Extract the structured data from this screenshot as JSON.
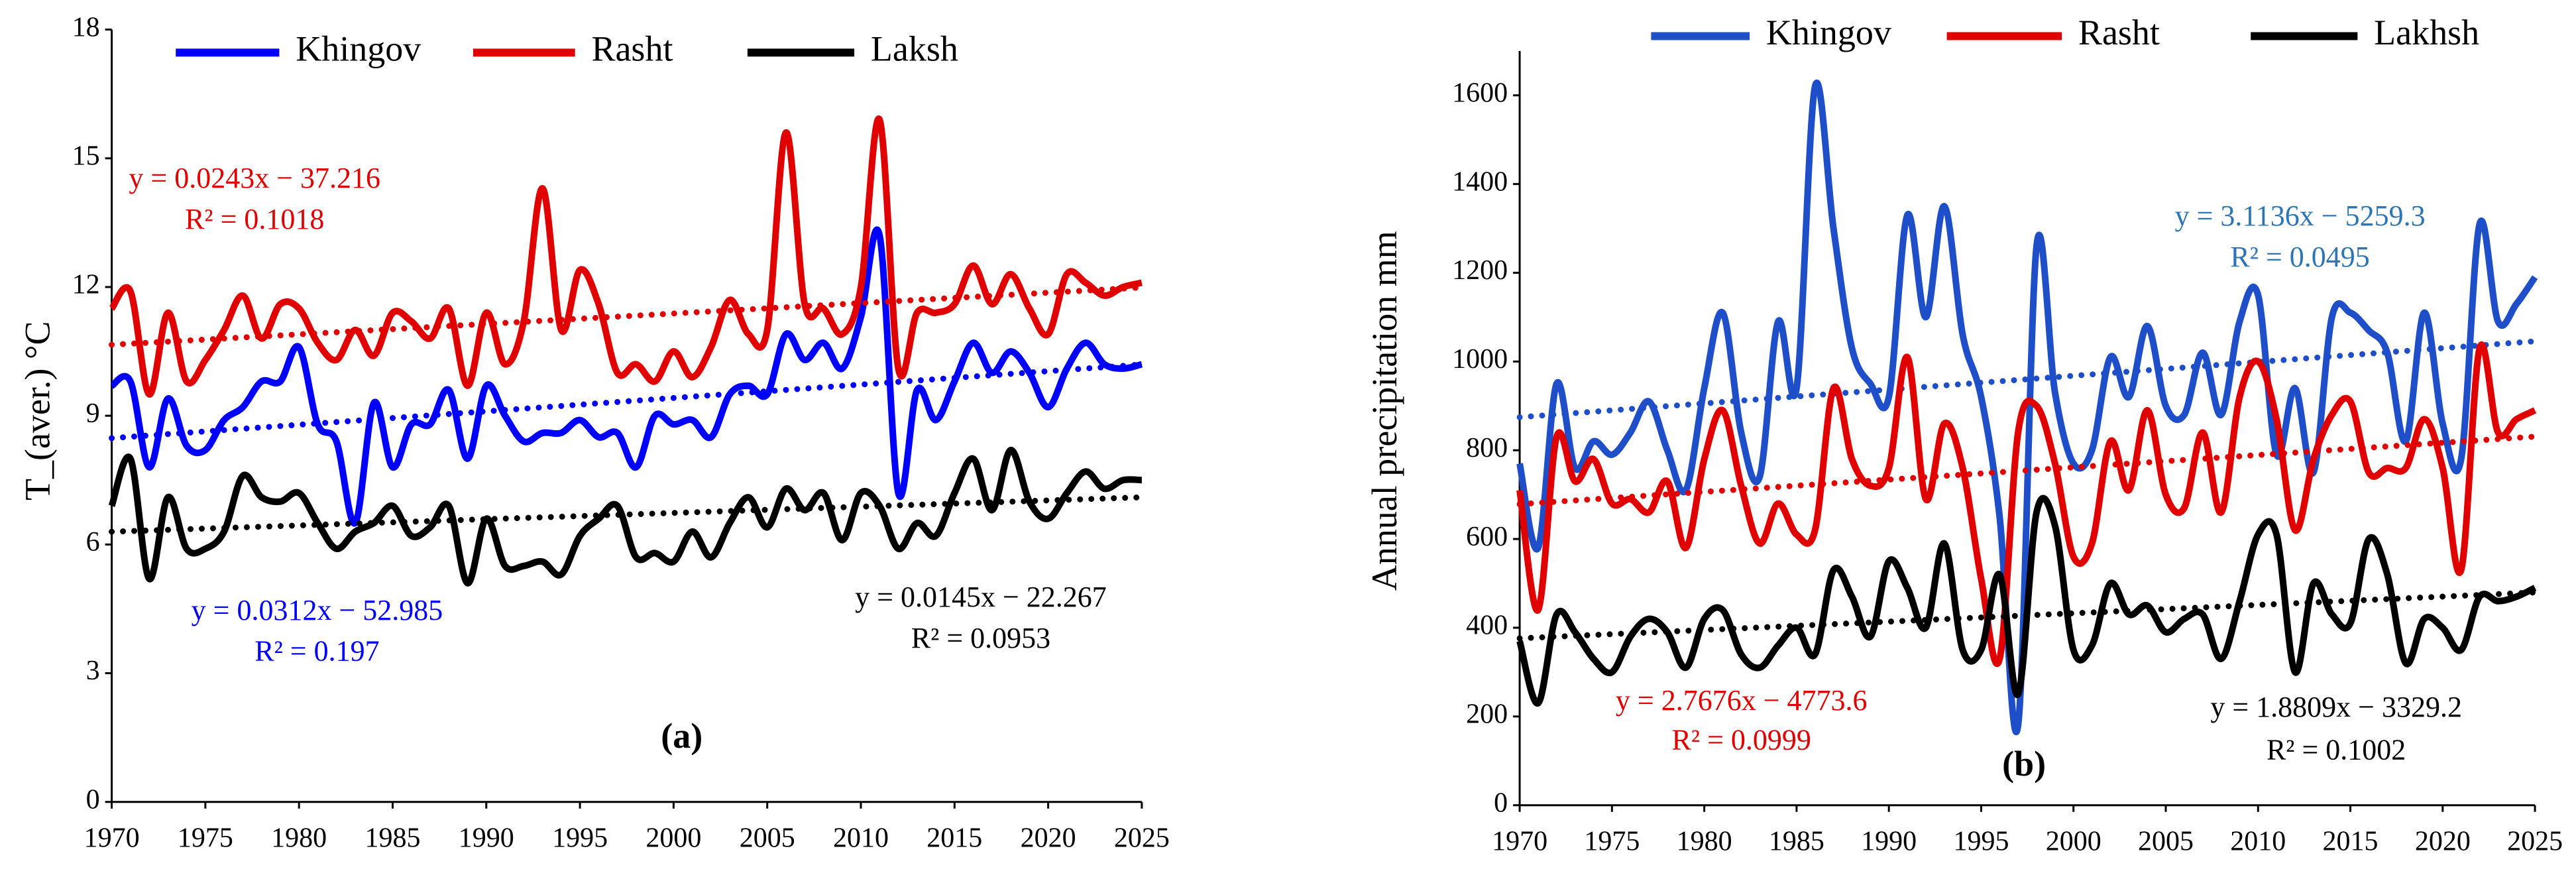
{
  "chart_data": [
    {
      "type": "line",
      "title": "(a)",
      "y_label": "T_(aver.) °C",
      "x": [
        1970,
        1971,
        1972,
        1973,
        1974,
        1975,
        1976,
        1977,
        1978,
        1979,
        1980,
        1981,
        1982,
        1983,
        1984,
        1985,
        1986,
        1987,
        1988,
        1989,
        1990,
        1991,
        1992,
        1993,
        1994,
        1995,
        1996,
        1997,
        1998,
        1999,
        2000,
        2001,
        2002,
        2003,
        2004,
        2005,
        2006,
        2007,
        2008,
        2009,
        2010,
        2011,
        2012,
        2013,
        2014,
        2015,
        2016,
        2017,
        2018,
        2019,
        2020,
        2021,
        2022,
        2023,
        2024,
        2025
      ],
      "xlim": [
        1970,
        2025
      ],
      "xticks": [
        1970,
        1975,
        1980,
        1985,
        1990,
        1995,
        2000,
        2005,
        2010,
        2015,
        2020,
        2025
      ],
      "ylim": [
        0,
        18
      ],
      "yticks": [
        0,
        3,
        6,
        9,
        12,
        15,
        18
      ],
      "grid": false,
      "legend": "top",
      "series": [
        {
          "name": "Khingov",
          "color": "#0000ff",
          "values": [
            9.7,
            9.8,
            7.8,
            9.4,
            8.3,
            8.2,
            8.9,
            9.2,
            9.8,
            9.8,
            10.6,
            8.8,
            8.4,
            6.5,
            9.3,
            7.8,
            8.8,
            8.8,
            9.6,
            8.0,
            9.7,
            9.0,
            8.4,
            8.6,
            8.6,
            8.9,
            8.5,
            8.6,
            7.8,
            9.0,
            8.8,
            8.9,
            8.5,
            9.5,
            9.7,
            9.5,
            10.9,
            10.3,
            10.7,
            10.1,
            11.3,
            13.2,
            7.2,
            9.6,
            8.9,
            9.8,
            10.7,
            10.0,
            10.5,
            10.0,
            9.2,
            10.1,
            10.7,
            10.2,
            10.1,
            10.2
          ],
          "trend": {
            "x": [
              1970,
              2025
            ],
            "values": [
              8.479,
              10.195
            ]
          }
        },
        {
          "name": "Rasht",
          "color": "#e00000",
          "values": [
            11.5,
            11.9,
            9.5,
            11.4,
            9.8,
            10.3,
            11.0,
            11.8,
            10.8,
            11.6,
            11.5,
            10.7,
            10.3,
            11.0,
            10.4,
            11.4,
            11.2,
            10.8,
            11.5,
            9.7,
            11.4,
            10.2,
            11.2,
            14.3,
            11.0,
            12.4,
            11.6,
            10.0,
            10.2,
            9.8,
            10.5,
            9.9,
            10.6,
            11.7,
            10.9,
            11.0,
            15.6,
            11.6,
            11.5,
            10.9,
            12.0,
            15.9,
            10.1,
            11.4,
            11.4,
            11.6,
            12.5,
            11.6,
            12.3,
            11.5,
            10.9,
            12.3,
            12.1,
            11.8,
            12.0,
            12.1
          ],
          "trend": {
            "x": [
              1970,
              2025
            ],
            "values": [
              10.655,
              11.99
            ]
          }
        },
        {
          "name": "Laksh",
          "color": "#000000",
          "values": [
            6.9,
            8.0,
            5.2,
            7.1,
            5.9,
            5.9,
            6.3,
            7.6,
            7.1,
            7.0,
            7.2,
            6.5,
            5.9,
            6.3,
            6.5,
            6.9,
            6.2,
            6.4,
            6.9,
            5.1,
            6.6,
            5.5,
            5.5,
            5.6,
            5.3,
            6.2,
            6.6,
            6.9,
            5.7,
            5.8,
            5.6,
            6.3,
            5.7,
            6.5,
            7.1,
            6.4,
            7.3,
            6.8,
            7.2,
            6.1,
            7.2,
            6.9,
            5.9,
            6.5,
            6.2,
            7.2,
            8.0,
            6.8,
            8.2,
            7.0,
            6.6,
            7.2,
            7.7,
            7.3,
            7.5,
            7.5
          ],
          "trend": {
            "x": [
              1970,
              2025
            ],
            "values": [
              6.298,
              7.1
            ]
          }
        }
      ],
      "annotations": [
        {
          "text": "y = 0.0243x − 37.216",
          "color": "#e00000"
        },
        {
          "text": "R² = 0.1018",
          "color": "#e00000"
        },
        {
          "text": "y = 0.0312x − 52.985",
          "color": "#0000ff"
        },
        {
          "text": "R² = 0.197",
          "color": "#0000ff"
        },
        {
          "text": "y = 0.0145x − 22.267",
          "color": "#000000"
        },
        {
          "text": "R² = 0.0953",
          "color": "#000000"
        }
      ]
    },
    {
      "type": "line",
      "title": "(b)",
      "y_label": "Annual precipitation  mm",
      "x": [
        1970,
        1971,
        1972,
        1973,
        1974,
        1975,
        1976,
        1977,
        1978,
        1979,
        1980,
        1981,
        1982,
        1983,
        1984,
        1985,
        1986,
        1987,
        1988,
        1989,
        1990,
        1991,
        1992,
        1993,
        1994,
        1995,
        1996,
        1997,
        1998,
        1999,
        2000,
        2001,
        2002,
        2003,
        2004,
        2005,
        2006,
        2007,
        2008,
        2009,
        2010,
        2011,
        2012,
        2013,
        2014,
        2015,
        2016,
        2017,
        2018,
        2019,
        2020,
        2021,
        2022,
        2023,
        2024,
        2025
      ],
      "xlim": [
        1970,
        2025
      ],
      "xticks": [
        1970,
        1975,
        1980,
        1985,
        1990,
        1995,
        2000,
        2005,
        2010,
        2015,
        2020,
        2025
      ],
      "ylim": [
        0,
        1700
      ],
      "yticks": [
        0,
        200,
        400,
        600,
        800,
        1000,
        1200,
        1400,
        1600
      ],
      "grid": false,
      "legend": "top",
      "series": [
        {
          "name": "Khingov",
          "color": "#1f4fc8",
          "values": [
            770,
            580,
            950,
            760,
            820,
            790,
            840,
            910,
            800,
            710,
            940,
            1110,
            840,
            740,
            1090,
            940,
            1620,
            1300,
            1030,
            950,
            920,
            1330,
            1100,
            1350,
            1060,
            920,
            650,
            180,
            1260,
            930,
            770,
            800,
            1010,
            920,
            1080,
            900,
            880,
            1020,
            880,
            1090,
            1150,
            790,
            940,
            750,
            1100,
            1110,
            1070,
            1020,
            820,
            1110,
            860,
            780,
            1310,
            1090,
            1130,
            1190
          ],
          "trend": {
            "x": [
              1970,
              2025
            ],
            "values": [
              874.5,
              1045.7
            ]
          }
        },
        {
          "name": "Rasht",
          "color": "#e00000",
          "values": [
            710,
            440,
            830,
            730,
            780,
            680,
            690,
            660,
            730,
            580,
            780,
            890,
            720,
            590,
            680,
            610,
            620,
            940,
            780,
            720,
            760,
            1010,
            690,
            860,
            760,
            510,
            330,
            840,
            900,
            770,
            560,
            590,
            820,
            710,
            890,
            700,
            670,
            840,
            660,
            920,
            1000,
            870,
            620,
            780,
            880,
            910,
            750,
            760,
            760,
            870,
            760,
            530,
            1030,
            840,
            870,
            890
          ],
          "trend": {
            "x": [
              1970,
              2025
            ],
            "values": [
              678.6,
              830.8
            ]
          }
        },
        {
          "name": "Lakhsh",
          "color": "#000000",
          "values": [
            370,
            230,
            430,
            390,
            330,
            300,
            380,
            420,
            390,
            310,
            420,
            440,
            340,
            310,
            360,
            400,
            340,
            530,
            470,
            380,
            550,
            490,
            400,
            590,
            350,
            350,
            520,
            250,
            660,
            630,
            350,
            360,
            500,
            430,
            450,
            390,
            420,
            430,
            330,
            460,
            610,
            610,
            300,
            500,
            430,
            410,
            600,
            520,
            320,
            420,
            400,
            350,
            470,
            460,
            470,
            490
          ],
          "trend": {
            "x": [
              1970,
              2025
            ],
            "values": [
              376.2,
              479.6
            ]
          }
        }
      ],
      "annotations": [
        {
          "text": "y = 3.1136x − 5259.3",
          "color": "#2e75b6"
        },
        {
          "text": "R² = 0.0495",
          "color": "#2e75b6"
        },
        {
          "text": "y = 2.7676x − 4773.6",
          "color": "#e00000"
        },
        {
          "text": "R² = 0.0999",
          "color": "#e00000"
        },
        {
          "text": "y = 1.8809x − 3329.2",
          "color": "#000000"
        },
        {
          "text": "R² = 0.1002",
          "color": "#000000"
        }
      ]
    }
  ]
}
